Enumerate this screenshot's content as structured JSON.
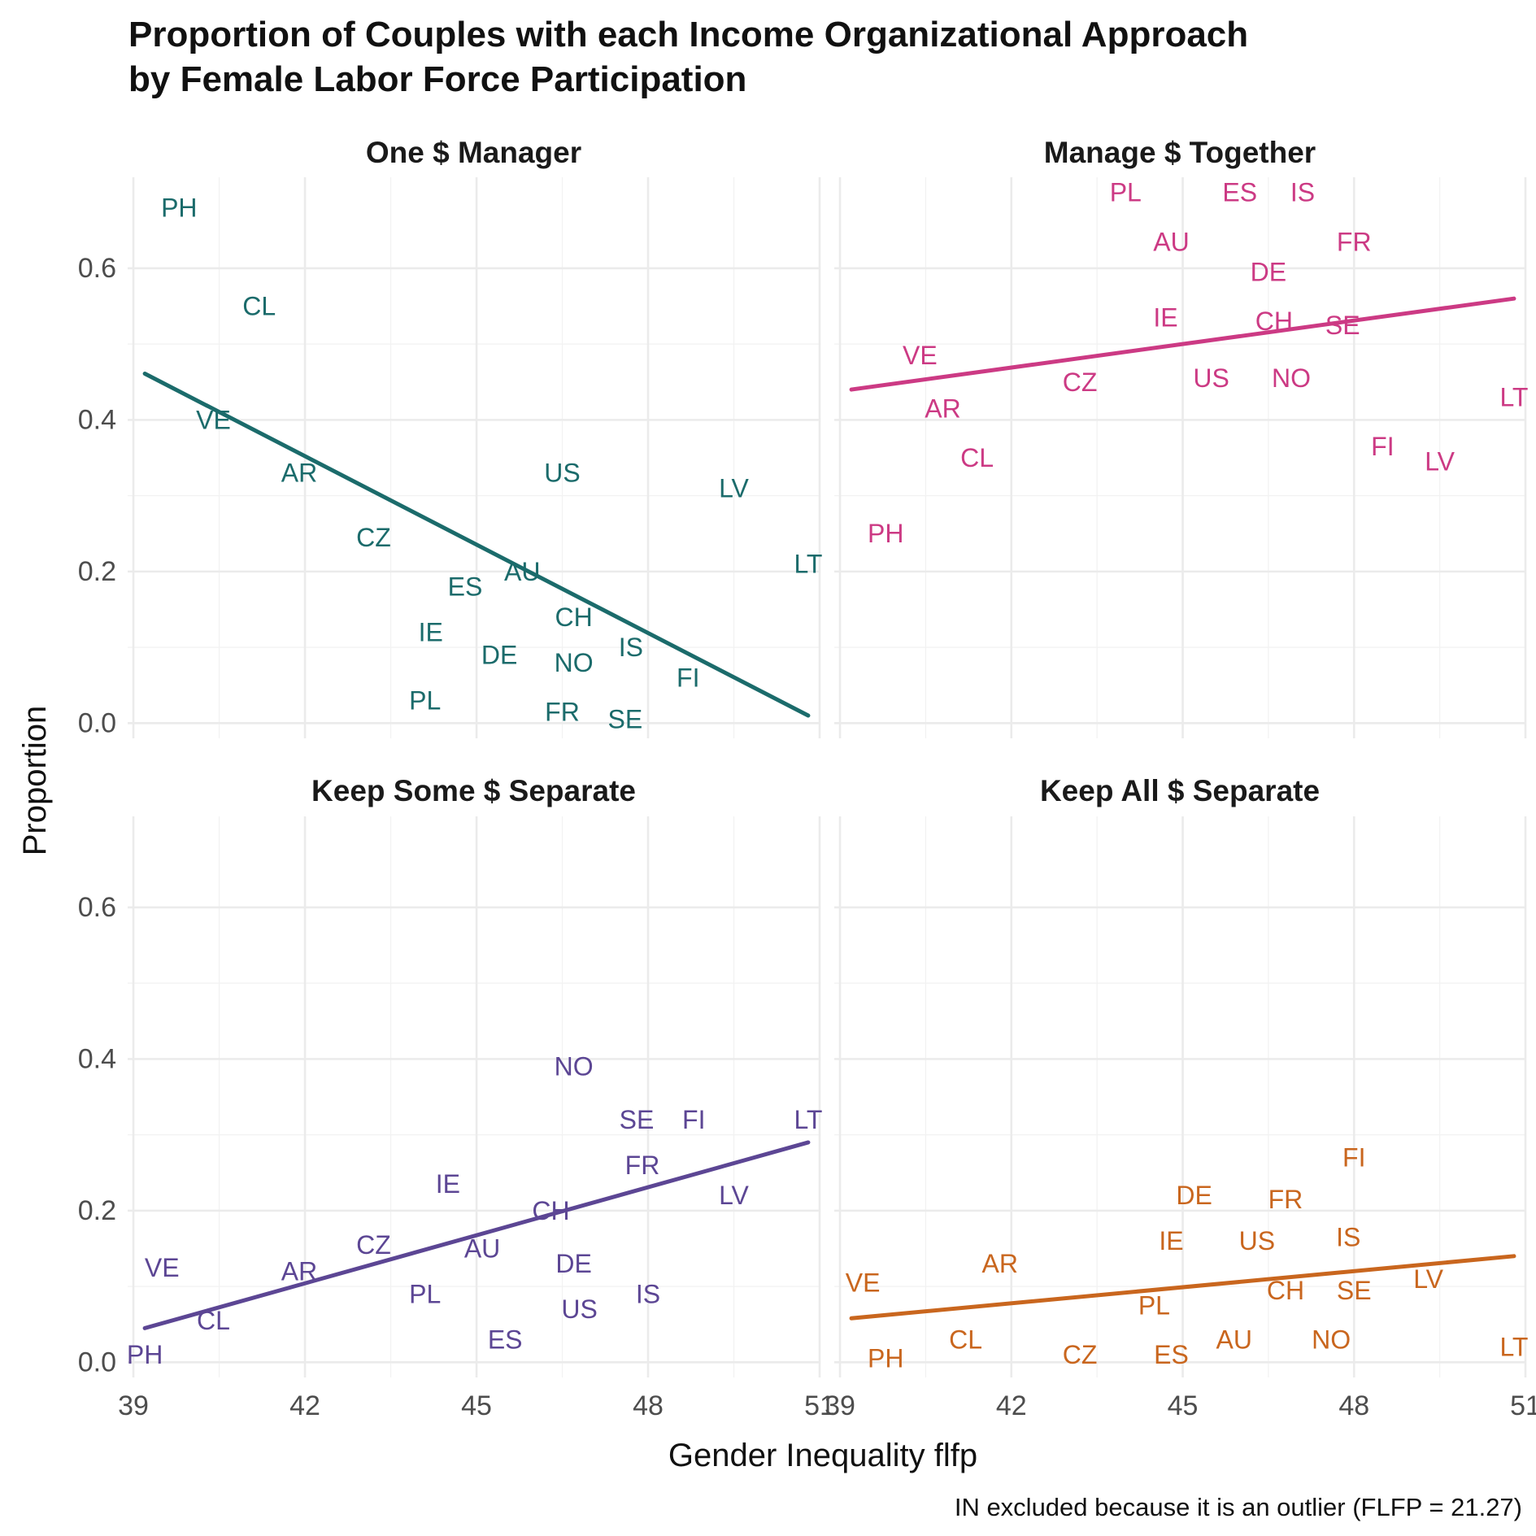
{
  "chart_data": {
    "type": "scatter",
    "title": "Proportion of Couples with each Income Organizational Approach",
    "subtitle": "by Female Labor Force Participation",
    "xlabel": "Gender Inequality flfp",
    "ylabel": "Proportion",
    "caption": "IN excluded because it is an outlier (FLFP = 21.27)",
    "xlim": [
      38.9,
      51
    ],
    "ylim": [
      -0.02,
      0.72
    ],
    "x_ticks": [
      39,
      42,
      45,
      48,
      51
    ],
    "y_ticks": [
      0.0,
      0.2,
      0.4,
      0.6
    ],
    "x_tick_labels": [
      "39",
      "42",
      "45",
      "48",
      "51"
    ],
    "y_tick_labels": [
      "0.0",
      "0.2",
      "0.4",
      "0.6"
    ],
    "grid": true,
    "facets": [
      {
        "name": "One $ Manager",
        "color": "#1b6b6b",
        "trend": [
          [
            39.2,
            0.461
          ],
          [
            50.8,
            0.01
          ]
        ],
        "points": [
          {
            "label": "PH",
            "x": 39.8,
            "y": 0.68
          },
          {
            "label": "CL",
            "x": 41.2,
            "y": 0.55
          },
          {
            "label": "VE",
            "x": 40.4,
            "y": 0.4
          },
          {
            "label": "AR",
            "x": 41.9,
            "y": 0.33
          },
          {
            "label": "CZ",
            "x": 43.2,
            "y": 0.245
          },
          {
            "label": "US",
            "x": 46.5,
            "y": 0.33
          },
          {
            "label": "LV",
            "x": 49.5,
            "y": 0.31
          },
          {
            "label": "LT",
            "x": 50.8,
            "y": 0.21
          },
          {
            "label": "AU",
            "x": 45.8,
            "y": 0.2
          },
          {
            "label": "ES",
            "x": 44.8,
            "y": 0.18
          },
          {
            "label": "CH",
            "x": 46.7,
            "y": 0.14
          },
          {
            "label": "IE",
            "x": 44.2,
            "y": 0.12
          },
          {
            "label": "DE",
            "x": 45.4,
            "y": 0.09
          },
          {
            "label": "NO",
            "x": 46.7,
            "y": 0.08
          },
          {
            "label": "IS",
            "x": 47.7,
            "y": 0.1
          },
          {
            "label": "FI",
            "x": 48.7,
            "y": 0.06
          },
          {
            "label": "PL",
            "x": 44.1,
            "y": 0.03
          },
          {
            "label": "FR",
            "x": 46.5,
            "y": 0.015
          },
          {
            "label": "SE",
            "x": 47.6,
            "y": 0.005
          }
        ]
      },
      {
        "name": "Manage $ Together",
        "color": "#cc3a84",
        "trend": [
          [
            39.2,
            0.44
          ],
          [
            50.8,
            0.56
          ]
        ],
        "points": [
          {
            "label": "PL",
            "x": 44.0,
            "y": 0.7
          },
          {
            "label": "ES",
            "x": 46.0,
            "y": 0.7
          },
          {
            "label": "IS",
            "x": 47.1,
            "y": 0.7
          },
          {
            "label": "AU",
            "x": 44.8,
            "y": 0.635
          },
          {
            "label": "FR",
            "x": 48.0,
            "y": 0.635
          },
          {
            "label": "DE",
            "x": 46.5,
            "y": 0.595
          },
          {
            "label": "IE",
            "x": 44.7,
            "y": 0.535
          },
          {
            "label": "CH",
            "x": 46.6,
            "y": 0.53
          },
          {
            "label": "SE",
            "x": 47.8,
            "y": 0.525
          },
          {
            "label": "VE",
            "x": 40.4,
            "y": 0.485
          },
          {
            "label": "CZ",
            "x": 43.2,
            "y": 0.45
          },
          {
            "label": "US",
            "x": 45.5,
            "y": 0.455
          },
          {
            "label": "NO",
            "x": 46.9,
            "y": 0.455
          },
          {
            "label": "AR",
            "x": 40.8,
            "y": 0.415
          },
          {
            "label": "LT",
            "x": 50.8,
            "y": 0.43
          },
          {
            "label": "CL",
            "x": 41.4,
            "y": 0.35
          },
          {
            "label": "FI",
            "x": 48.5,
            "y": 0.365
          },
          {
            "label": "LV",
            "x": 49.5,
            "y": 0.345
          },
          {
            "label": "PH",
            "x": 39.8,
            "y": 0.25
          }
        ]
      },
      {
        "name": "Keep Some $ Separate",
        "color": "#5c4694",
        "trend": [
          [
            39.2,
            0.045
          ],
          [
            50.8,
            0.29
          ]
        ],
        "points": [
          {
            "label": "NO",
            "x": 46.7,
            "y": 0.39
          },
          {
            "label": "SE",
            "x": 47.8,
            "y": 0.32
          },
          {
            "label": "FI",
            "x": 48.8,
            "y": 0.32
          },
          {
            "label": "LT",
            "x": 50.8,
            "y": 0.32
          },
          {
            "label": "FR",
            "x": 47.9,
            "y": 0.26
          },
          {
            "label": "LV",
            "x": 49.5,
            "y": 0.22
          },
          {
            "label": "IE",
            "x": 44.5,
            "y": 0.235
          },
          {
            "label": "CH",
            "x": 46.3,
            "y": 0.2
          },
          {
            "label": "CZ",
            "x": 43.2,
            "y": 0.155
          },
          {
            "label": "AU",
            "x": 45.1,
            "y": 0.15
          },
          {
            "label": "DE",
            "x": 46.7,
            "y": 0.13
          },
          {
            "label": "VE",
            "x": 39.5,
            "y": 0.125
          },
          {
            "label": "AR",
            "x": 41.9,
            "y": 0.12
          },
          {
            "label": "PL",
            "x": 44.1,
            "y": 0.09
          },
          {
            "label": "IS",
            "x": 48.0,
            "y": 0.09
          },
          {
            "label": "US",
            "x": 46.8,
            "y": 0.07
          },
          {
            "label": "CL",
            "x": 40.4,
            "y": 0.055
          },
          {
            "label": "ES",
            "x": 45.5,
            "y": 0.03
          },
          {
            "label": "PH",
            "x": 39.2,
            "y": 0.01
          }
        ]
      },
      {
        "name": "Keep All $ Separate",
        "color": "#c9661e",
        "trend": [
          [
            39.2,
            0.058
          ],
          [
            50.8,
            0.14
          ]
        ],
        "points": [
          {
            "label": "FI",
            "x": 48.0,
            "y": 0.27
          },
          {
            "label": "DE",
            "x": 45.2,
            "y": 0.22
          },
          {
            "label": "FR",
            "x": 46.8,
            "y": 0.215
          },
          {
            "label": "IE",
            "x": 44.8,
            "y": 0.16
          },
          {
            "label": "US",
            "x": 46.3,
            "y": 0.16
          },
          {
            "label": "IS",
            "x": 47.9,
            "y": 0.165
          },
          {
            "label": "AR",
            "x": 41.8,
            "y": 0.13
          },
          {
            "label": "VE",
            "x": 39.4,
            "y": 0.105
          },
          {
            "label": "LV",
            "x": 49.3,
            "y": 0.11
          },
          {
            "label": "CH",
            "x": 46.8,
            "y": 0.095
          },
          {
            "label": "SE",
            "x": 48.0,
            "y": 0.095
          },
          {
            "label": "PL",
            "x": 44.5,
            "y": 0.075
          },
          {
            "label": "AU",
            "x": 45.9,
            "y": 0.03
          },
          {
            "label": "NO",
            "x": 47.6,
            "y": 0.03
          },
          {
            "label": "CL",
            "x": 41.2,
            "y": 0.03
          },
          {
            "label": "CZ",
            "x": 43.2,
            "y": 0.01
          },
          {
            "label": "ES",
            "x": 44.8,
            "y": 0.01
          },
          {
            "label": "PH",
            "x": 39.8,
            "y": 0.005
          },
          {
            "label": "LT",
            "x": 50.8,
            "y": 0.02
          }
        ]
      }
    ]
  }
}
